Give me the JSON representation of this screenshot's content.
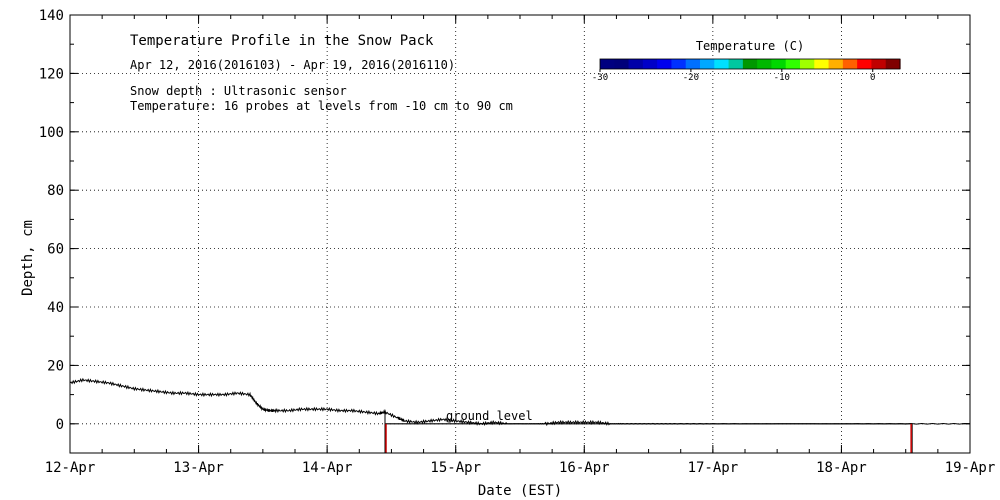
{
  "chart_data": {
    "type": "line",
    "title": "Temperature Profile in the Snow Pack",
    "subtitle": "Apr 12, 2016(2016103) - Apr 19, 2016(2016110)",
    "notes": [
      "Snow depth : Ultrasonic sensor",
      "Temperature: 16 probes at levels from -10 cm to 90 cm"
    ],
    "xlabel": "Date (EST)",
    "ylabel": "Depth, cm",
    "x_ticks": [
      "12-Apr",
      "13-Apr",
      "14-Apr",
      "15-Apr",
      "16-Apr",
      "17-Apr",
      "18-Apr",
      "19-Apr"
    ],
    "xlim": [
      0,
      7
    ],
    "ylim": [
      -10,
      140
    ],
    "y_ticks": [
      0,
      20,
      40,
      60,
      80,
      100,
      120,
      140
    ],
    "grid": true,
    "annotation": "ground level",
    "colorbar": {
      "title": "Temperature (C)",
      "range": [
        -30,
        3
      ],
      "ticks": [
        -30,
        -20,
        -10,
        0
      ],
      "colors": [
        "#000080",
        "#00007a",
        "#0000a8",
        "#0000c8",
        "#0000ee",
        "#0030ff",
        "#0070ff",
        "#00a8ff",
        "#00e0ff",
        "#00c8a0",
        "#009800",
        "#00b800",
        "#00d800",
        "#30ff00",
        "#a0ff00",
        "#ffff00",
        "#ffb000",
        "#ff6000",
        "#ff0000",
        "#c00000",
        "#800000"
      ]
    },
    "series": [
      {
        "name": "Snow depth",
        "x": [
          0,
          0.1,
          0.2,
          0.3,
          0.4,
          0.5,
          0.6,
          0.7,
          0.8,
          0.9,
          1.0,
          1.1,
          1.2,
          1.3,
          1.4,
          1.45,
          1.5,
          1.55,
          1.6,
          1.7,
          1.8,
          1.9,
          2.0,
          2.1,
          2.2,
          2.3,
          2.4,
          2.45,
          2.55,
          2.6,
          2.7,
          2.8,
          2.9,
          3.0,
          3.1,
          3.2,
          3.3,
          3.4,
          3.5,
          3.6,
          3.7,
          3.8,
          3.9,
          4.0,
          4.1,
          4.2,
          4.3,
          4.5,
          4.7,
          5.0,
          5.5,
          6.0,
          6.5,
          7.0
        ],
        "y": [
          14,
          15,
          14.5,
          14,
          13,
          12,
          11.5,
          11,
          10.5,
          10.5,
          10,
          10,
          10,
          10.5,
          10,
          7,
          5,
          4.5,
          4.5,
          4.5,
          5,
          5,
          5,
          4.5,
          4.5,
          4,
          3.5,
          4,
          2,
          1,
          0.5,
          1,
          1.5,
          1,
          0.5,
          0,
          0.5,
          0,
          0,
          0,
          0,
          0.5,
          0.5,
          0.5,
          0.5,
          0,
          0,
          0,
          0,
          0,
          0,
          0,
          0,
          0
        ]
      },
      {
        "name": "Ground level",
        "x": [
          2.45,
          6.55
        ],
        "y": [
          0,
          0
        ]
      }
    ]
  }
}
